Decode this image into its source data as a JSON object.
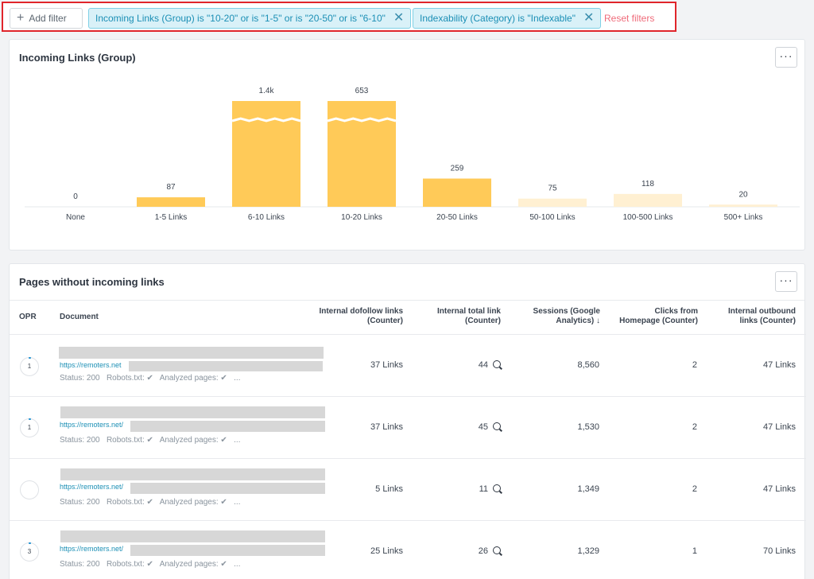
{
  "filters": {
    "add_label": "Add filter",
    "chips": [
      {
        "label": "Incoming Links (Group) is \"10-20\" or is \"1-5\" or is \"20-50\" or is \"6-10\""
      },
      {
        "label": "Indexability (Category) is \"Indexable\""
      }
    ],
    "reset_label": "Reset filters"
  },
  "chart_card": {
    "title": "Incoming Links (Group)",
    "more_label": "···"
  },
  "chart_data": {
    "type": "bar",
    "title": "Incoming Links (Group)",
    "categories": [
      "None",
      "1-5 Links",
      "6-10 Links",
      "10-20 Links",
      "20-50 Links",
      "50-100 Links",
      "100-500 Links",
      "500+ Links"
    ],
    "values": [
      0,
      87,
      1400,
      653,
      259,
      75,
      118,
      20
    ],
    "value_labels": [
      "0",
      "87",
      "1.4k",
      "653",
      "259",
      "75",
      "118",
      "20"
    ],
    "highlighted": [
      false,
      true,
      true,
      true,
      true,
      false,
      false,
      false
    ],
    "axis_break": true,
    "colors": {
      "active": "#ffca58",
      "inactive": "#fff0d2"
    }
  },
  "table_card": {
    "title": "Pages without incoming links",
    "more_label": "···",
    "columns": {
      "opr": "OPR",
      "document": "Document",
      "dofollow": [
        "Internal dofollow links",
        "(Counter)"
      ],
      "total": [
        "Internal total link",
        "(Counter)"
      ],
      "sessions": [
        "Sessions (Google",
        "Analytics) ↓"
      ],
      "clicks": [
        "Clicks from",
        "Homepage (Counter)"
      ],
      "outbound": [
        "Internal outbound",
        "links (Counter)"
      ]
    },
    "rows": [
      {
        "opr": "1",
        "url": "https://remoters.net",
        "status": "Status: 200",
        "robots": "Robots.txt: ✔",
        "analyzed": "Analyzed pages: ✔",
        "more": "...",
        "dofollow": "37 Links",
        "total": "44",
        "sessions": "8,560",
        "clicks": "2",
        "outbound": "47 Links"
      },
      {
        "opr": "1",
        "url": "https://remoters.net/",
        "status": "Status: 200",
        "robots": "Robots.txt: ✔",
        "analyzed": "Analyzed pages: ✔",
        "more": "...",
        "dofollow": "37 Links",
        "total": "45",
        "sessions": "1,530",
        "clicks": "2",
        "outbound": "47 Links"
      },
      {
        "opr": "",
        "url": "https://remoters.net/",
        "status": "Status: 200",
        "robots": "Robots.txt: ✔",
        "analyzed": "Analyzed pages: ✔",
        "more": "...",
        "dofollow": "5 Links",
        "total": "11",
        "sessions": "1,349",
        "clicks": "2",
        "outbound": "47 Links"
      },
      {
        "opr": "3",
        "url": "https://remoters.net/",
        "status": "Status: 200",
        "robots": "Robots.txt: ✔",
        "analyzed": "Analyzed pages: ✔",
        "more": "...",
        "dofollow": "25 Links",
        "total": "26",
        "sessions": "1,329",
        "clicks": "1",
        "outbound": "70 Links"
      }
    ]
  }
}
